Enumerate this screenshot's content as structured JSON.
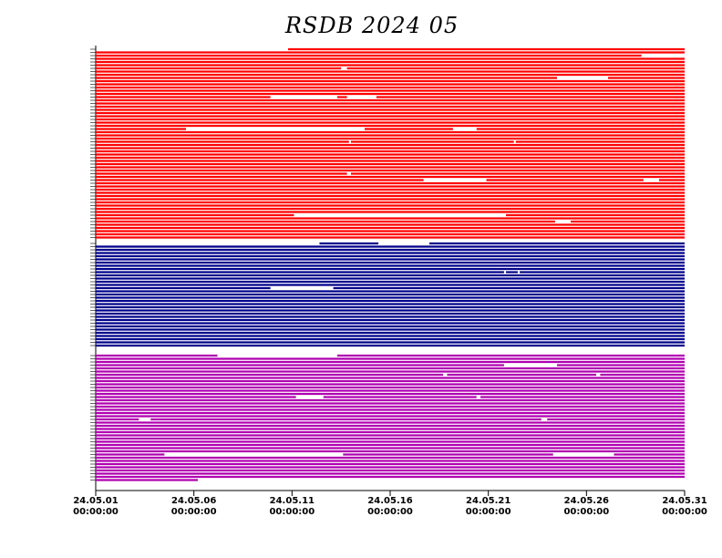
{
  "chart_data": {
    "type": "availability",
    "title": "RSDB  2024  05",
    "xlim": [
      0,
      30
    ],
    "xticks": [
      {
        "value": 0,
        "label": "24.05.01",
        "sublabel": "00:00:00"
      },
      {
        "value": 5,
        "label": "24.05.06",
        "sublabel": "00:00:00"
      },
      {
        "value": 10,
        "label": "24.05.11",
        "sublabel": "00:00:00"
      },
      {
        "value": 15,
        "label": "24.05.16",
        "sublabel": "00:00:00"
      },
      {
        "value": 20,
        "label": "24.05.21",
        "sublabel": "00:00:00"
      },
      {
        "value": 25,
        "label": "24.05.26",
        "sublabel": "00:00:00"
      },
      {
        "value": 30,
        "label": "24.05.31",
        "sublabel": "00:00:00"
      }
    ],
    "series": [
      {
        "color": "#ff0000",
        "rows": [
          [
            [
              9.8,
              30
            ]
          ],
          [
            [
              0,
              30
            ]
          ],
          [
            [
              0,
              27.8
            ]
          ],
          [
            [
              0,
              30
            ]
          ],
          [
            [
              0,
              30
            ]
          ],
          [
            [
              0,
              30
            ]
          ],
          [
            [
              0,
              12.5
            ],
            [
              12.8,
              30
            ]
          ],
          [
            [
              0,
              30
            ]
          ],
          [
            [
              0,
              30
            ]
          ],
          [
            [
              0,
              23.5
            ],
            [
              26.1,
              30
            ]
          ],
          [
            [
              0,
              30
            ]
          ],
          [
            [
              0,
              30
            ]
          ],
          [
            [
              0,
              30
            ]
          ],
          [
            [
              0,
              30
            ]
          ],
          [
            [
              0,
              30
            ]
          ],
          [
            [
              0,
              8.9
            ],
            [
              12.3,
              12.8
            ],
            [
              14.3,
              30
            ]
          ],
          [
            [
              0,
              30
            ]
          ],
          [
            [
              0,
              30
            ]
          ],
          [
            [
              0,
              30
            ]
          ],
          [
            [
              0,
              30
            ]
          ],
          [
            [
              0,
              30
            ]
          ],
          [
            [
              0,
              30
            ]
          ],
          [
            [
              0,
              30
            ]
          ],
          [
            [
              0,
              30
            ]
          ],
          [
            [
              0,
              30
            ]
          ],
          [
            [
              0,
              4.6
            ],
            [
              13.7,
              18.2
            ],
            [
              19.4,
              30
            ]
          ],
          [
            [
              0,
              30
            ]
          ],
          [
            [
              0,
              30
            ]
          ],
          [
            [
              0,
              30
            ]
          ],
          [
            [
              0,
              12.9
            ],
            [
              13.0,
              21.3
            ],
            [
              21.4,
              30
            ]
          ],
          [
            [
              0,
              30
            ]
          ],
          [
            [
              0,
              30
            ]
          ],
          [
            [
              0,
              30
            ]
          ],
          [
            [
              0,
              30
            ]
          ],
          [
            [
              0,
              30
            ]
          ],
          [
            [
              0,
              30
            ]
          ],
          [
            [
              0,
              30
            ]
          ],
          [
            [
              0,
              30
            ]
          ],
          [
            [
              0,
              30
            ]
          ],
          [
            [
              0,
              12.8
            ],
            [
              13.0,
              30
            ]
          ],
          [
            [
              0,
              30
            ]
          ],
          [
            [
              0,
              16.7
            ],
            [
              19.9,
              27.9
            ],
            [
              28.7,
              30
            ]
          ],
          [
            [
              0,
              30
            ]
          ],
          [
            [
              0,
              30
            ]
          ],
          [
            [
              0,
              30
            ]
          ],
          [
            [
              0,
              30
            ]
          ],
          [
            [
              0,
              30
            ]
          ],
          [
            [
              0,
              30
            ]
          ],
          [
            [
              0,
              30
            ]
          ],
          [
            [
              0,
              30
            ]
          ],
          [
            [
              0,
              30
            ]
          ],
          [
            [
              0,
              30
            ]
          ],
          [
            [
              0,
              10.1
            ],
            [
              20.9,
              30
            ]
          ],
          [
            [
              0,
              30
            ]
          ],
          [
            [
              0,
              23.4
            ],
            [
              24.2,
              30
            ]
          ],
          [
            [
              0,
              30
            ]
          ],
          [
            [
              0,
              30
            ]
          ],
          [
            [
              0,
              30
            ]
          ],
          [
            [
              0,
              30
            ]
          ],
          [
            [
              0,
              30
            ]
          ]
        ]
      },
      {
        "color": "#00008b",
        "rows": [
          [
            [
              11.4,
              14.4
            ],
            [
              17.0,
              30
            ]
          ],
          [
            [
              0,
              30
            ]
          ],
          [
            [
              0,
              30
            ]
          ],
          [
            [
              0,
              30
            ]
          ],
          [
            [
              0,
              30
            ]
          ],
          [
            [
              0,
              30
            ]
          ],
          [
            [
              0,
              30
            ]
          ],
          [
            [
              0,
              30
            ]
          ],
          [
            [
              0,
              30
            ]
          ],
          [
            [
              0,
              20.8
            ],
            [
              20.9,
              21.5
            ],
            [
              21.6,
              30
            ]
          ],
          [
            [
              0,
              30
            ]
          ],
          [
            [
              0,
              30
            ]
          ],
          [
            [
              0,
              30
            ]
          ],
          [
            [
              0,
              30
            ]
          ],
          [
            [
              0,
              8.9
            ],
            [
              12.1,
              30
            ]
          ],
          [
            [
              0,
              30
            ]
          ],
          [
            [
              0,
              30
            ]
          ],
          [
            [
              0,
              30
            ]
          ],
          [
            [
              0,
              30
            ]
          ],
          [
            [
              0,
              30
            ]
          ],
          [
            [
              0,
              30
            ]
          ],
          [
            [
              0,
              30
            ]
          ],
          [
            [
              0,
              30
            ]
          ],
          [
            [
              0,
              30
            ]
          ],
          [
            [
              0,
              30
            ]
          ],
          [
            [
              0,
              30
            ]
          ],
          [
            [
              0,
              30
            ]
          ],
          [
            [
              0,
              30
            ]
          ],
          [
            [
              0,
              30
            ]
          ],
          [
            [
              0,
              30
            ]
          ],
          [
            [
              0,
              30
            ]
          ],
          [
            [
              0,
              30
            ]
          ],
          [
            [
              0,
              30
            ]
          ]
        ]
      },
      {
        "color": "#b000b0",
        "rows": [
          [
            [
              0,
              6.2
            ],
            [
              12.3,
              30
            ]
          ],
          [
            [
              0,
              30
            ]
          ],
          [
            [
              0,
              30
            ]
          ],
          [
            [
              0,
              20.8
            ],
            [
              23.5,
              30
            ]
          ],
          [
            [
              0,
              30
            ]
          ],
          [
            [
              0,
              30
            ]
          ],
          [
            [
              0,
              17.7
            ],
            [
              17.9,
              25.5
            ],
            [
              25.7,
              30
            ]
          ],
          [
            [
              0,
              30
            ]
          ],
          [
            [
              0,
              30
            ]
          ],
          [
            [
              0,
              30
            ]
          ],
          [
            [
              0,
              30
            ]
          ],
          [
            [
              0,
              30
            ]
          ],
          [
            [
              0,
              30
            ]
          ],
          [
            [
              0,
              10.2
            ],
            [
              11.6,
              19.4
            ],
            [
              19.6,
              30
            ]
          ],
          [
            [
              0,
              30
            ]
          ],
          [
            [
              0,
              30
            ]
          ],
          [
            [
              0,
              30
            ]
          ],
          [
            [
              0,
              30
            ]
          ],
          [
            [
              0,
              30
            ]
          ],
          [
            [
              0,
              30
            ]
          ],
          [
            [
              0,
              2.2
            ],
            [
              2.8,
              22.7
            ],
            [
              23.0,
              30
            ]
          ],
          [
            [
              0,
              30
            ]
          ],
          [
            [
              0,
              30
            ]
          ],
          [
            [
              0,
              30
            ]
          ],
          [
            [
              0,
              30
            ]
          ],
          [
            [
              0,
              30
            ]
          ],
          [
            [
              0,
              30
            ]
          ],
          [
            [
              0,
              30
            ]
          ],
          [
            [
              0,
              30
            ]
          ],
          [
            [
              0,
              30
            ]
          ],
          [
            [
              0,
              30
            ]
          ],
          [
            [
              0,
              3.5
            ],
            [
              12.6,
              23.3
            ],
            [
              26.4,
              30
            ]
          ],
          [
            [
              0,
              30
            ]
          ],
          [
            [
              0,
              30
            ]
          ],
          [
            [
              0,
              30
            ]
          ],
          [
            [
              0,
              30
            ]
          ],
          [
            [
              0,
              30
            ]
          ],
          [
            [
              0,
              30
            ]
          ],
          [
            [
              0,
              30
            ]
          ],
          [
            [
              0,
              5.2
            ]
          ]
        ]
      }
    ]
  }
}
